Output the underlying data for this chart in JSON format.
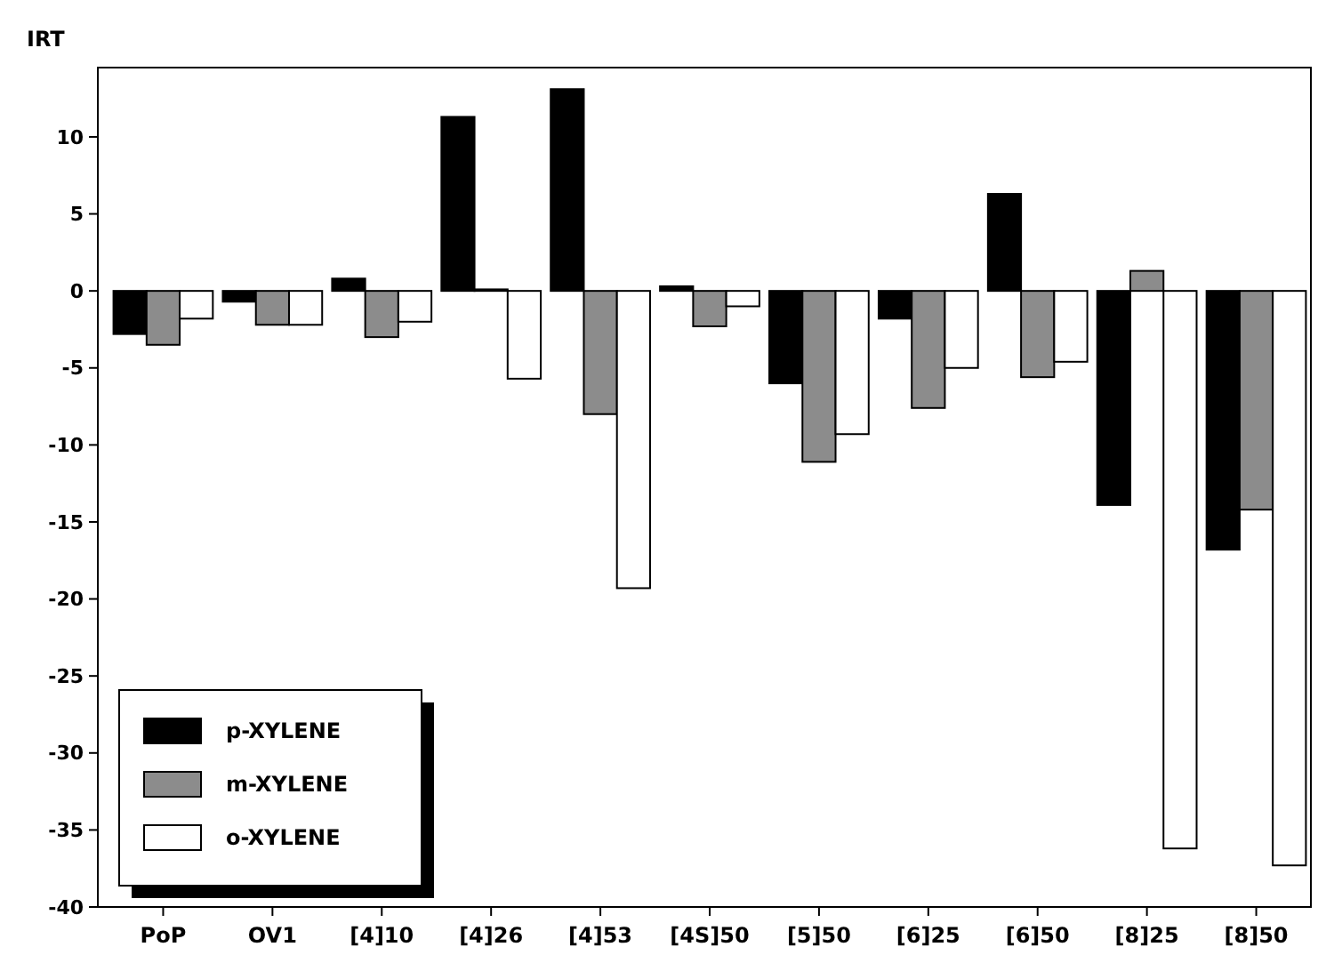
{
  "chart_data": {
    "type": "bar",
    "ylabel": "IRT",
    "categories": [
      "PoP",
      "OV1",
      "[4]10",
      "[4]26",
      "[4]53",
      "[4S]50",
      "[5]50",
      "[6]25",
      "[6]50",
      "[8]25",
      "[8]50"
    ],
    "series": [
      {
        "name": "p-XYLENE",
        "color": "#000000",
        "values": [
          -2.8,
          -0.7,
          0.8,
          11.3,
          13.1,
          0.3,
          -6,
          -1.8,
          6.3,
          -13.9,
          -16.8
        ]
      },
      {
        "name": "m-XYLENE",
        "color": "#8c8c8c",
        "values": [
          -3.5,
          -2.2,
          -3,
          0.1,
          -8,
          -2.3,
          -11.1,
          -7.6,
          -5.6,
          1.3,
          -14.2
        ]
      },
      {
        "name": "o-XYLENE",
        "color": "#ffffff",
        "values": [
          -1.8,
          -2.2,
          -2,
          -5.7,
          -19.3,
          -1,
          -9.3,
          -5,
          -4.6,
          -36.2,
          -37.3
        ]
      }
    ],
    "ylim": [
      -40,
      14.5
    ],
    "yticks": [
      10,
      5,
      0,
      -5,
      -10,
      -15,
      -20,
      -25,
      -30,
      -35,
      -40
    ],
    "grid": false,
    "legend": "bottom left"
  }
}
